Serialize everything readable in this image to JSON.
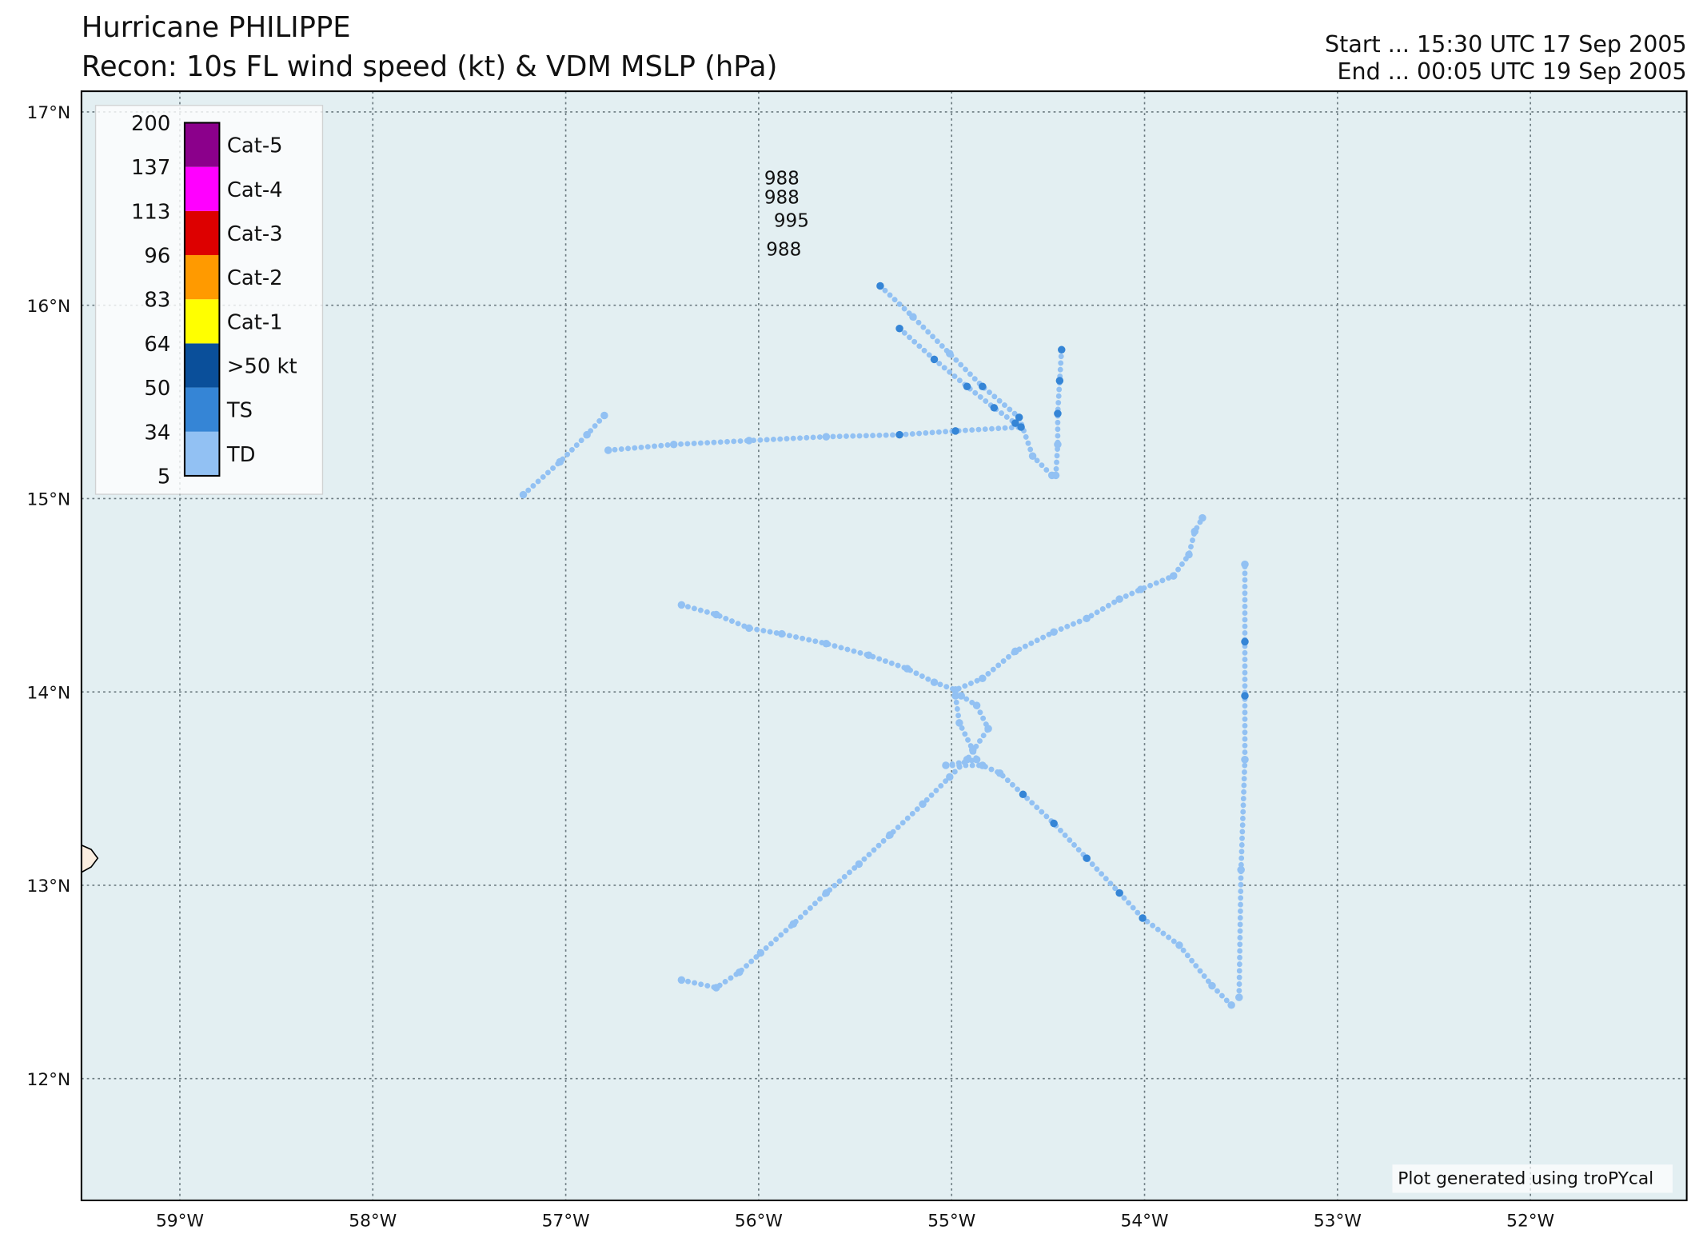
{
  "chart_data": {
    "type": "scatter",
    "title": "Hurricane PHILIPPE",
    "subtitle": "Recon: 10s FL wind speed (kt) & VDM MSLP (hPa)",
    "start": "Start ... 15:30 UTC 17 Sep 2005",
    "end": "End ... 00:05 UTC 19 Sep 2005",
    "credit": "Plot generated using troPYcal",
    "xlim": [
      -59.51,
      -51.19
    ],
    "ylim": [
      11.37,
      17.107
    ],
    "xticks": [
      {
        "value": -59,
        "label": "59°W"
      },
      {
        "value": -58,
        "label": "58°W"
      },
      {
        "value": -57,
        "label": "57°W"
      },
      {
        "value": -56,
        "label": "56°W"
      },
      {
        "value": -55,
        "label": "55°W"
      },
      {
        "value": -54,
        "label": "54°W"
      },
      {
        "value": -53,
        "label": "53°W"
      },
      {
        "value": -52,
        "label": "52°W"
      }
    ],
    "yticks": [
      {
        "value": 12,
        "label": "12°N"
      },
      {
        "value": 13,
        "label": "13°N"
      },
      {
        "value": 14,
        "label": "14°N"
      },
      {
        "value": 15,
        "label": "15°N"
      },
      {
        "value": 16,
        "label": "16°N"
      },
      {
        "value": 17,
        "label": "17°N"
      }
    ],
    "grid": true,
    "colorbar": {
      "levels": [
        5,
        34,
        50,
        64,
        83,
        96,
        113,
        137,
        200
      ],
      "categories": [
        {
          "name": "TD",
          "color": "#92c1f3"
        },
        {
          "name": "TS",
          "color": "#3585d6"
        },
        {
          "name": ">50 kt",
          "color": "#0a4f9a"
        },
        {
          "name": "Cat-1",
          "color": "#ffff00"
        },
        {
          "name": "Cat-2",
          "color": "#ff9a00"
        },
        {
          "name": "Cat-3",
          "color": "#dd0000"
        },
        {
          "name": "Cat-4",
          "color": "#ff00ff"
        },
        {
          "name": "Cat-5",
          "color": "#8b008b"
        }
      ]
    },
    "legs": [
      {
        "lon": [
          -57.22,
          -57.03,
          -56.89,
          -56.8
        ],
        "lat": [
          15.02,
          15.19,
          15.33,
          15.43
        ],
        "wind": [
          25,
          25,
          25,
          25
        ]
      },
      {
        "lon": [
          -56.78,
          -56.44,
          -56.05,
          -55.65,
          -55.27,
          -54.98,
          -54.64
        ],
        "lat": [
          15.25,
          15.28,
          15.3,
          15.32,
          15.33,
          15.35,
          15.37
        ],
        "wind": [
          25,
          25,
          25,
          25,
          40,
          40,
          40
        ]
      },
      {
        "lon": [
          -55.37,
          -55.2,
          -55.01,
          -54.84,
          -54.65,
          -54.58,
          -54.48
        ],
        "lat": [
          16.1,
          15.94,
          15.75,
          15.58,
          15.42,
          15.22,
          15.12
        ],
        "wind": [
          40,
          25,
          25,
          40,
          40,
          25,
          25
        ]
      },
      {
        "lon": [
          -55.27,
          -55.09,
          -54.92,
          -54.78,
          -54.67
        ],
        "lat": [
          15.88,
          15.72,
          15.58,
          15.47,
          15.39
        ],
        "wind": [
          40,
          40,
          40,
          40,
          40
        ]
      },
      {
        "lon": [
          -54.43,
          -54.44,
          -54.45,
          -54.45,
          -54.46
        ],
        "lat": [
          15.77,
          15.61,
          15.44,
          15.28,
          15.12
        ],
        "wind": [
          40,
          40,
          40,
          25,
          25
        ]
      },
      {
        "lon": [
          -56.4,
          -56.22,
          -56.05,
          -55.88,
          -55.65,
          -55.43,
          -55.23,
          -55.09,
          -54.98,
          -54.84,
          -54.67,
          -54.47,
          -54.3,
          -54.13,
          -54.02,
          -53.85,
          -53.77,
          -53.74,
          -53.7
        ],
        "lat": [
          14.45,
          14.4,
          14.33,
          14.3,
          14.25,
          14.19,
          14.12,
          14.05,
          14.01,
          14.07,
          14.21,
          14.31,
          14.38,
          14.48,
          14.53,
          14.6,
          14.71,
          14.83,
          14.9
        ],
        "wind": [
          25,
          25,
          25,
          25,
          25,
          25,
          25,
          25,
          25,
          25,
          25,
          25,
          25,
          25,
          25,
          25,
          25,
          25,
          25
        ]
      },
      {
        "lon": [
          -54.98,
          -54.96,
          -54.89,
          -54.87,
          -55.03,
          -54.84,
          -54.75,
          -54.63,
          -54.47,
          -54.3,
          -54.13,
          -54.01,
          -53.82,
          -53.65,
          -53.55
        ],
        "lat": [
          13.98,
          13.84,
          13.7,
          13.65,
          13.62,
          13.62,
          13.58,
          13.47,
          13.32,
          13.14,
          12.96,
          12.83,
          12.69,
          12.48,
          12.38
        ],
        "wind": [
          25,
          25,
          25,
          25,
          25,
          25,
          25,
          40,
          40,
          40,
          40,
          40,
          25,
          25,
          25
        ]
      },
      {
        "lon": [
          -53.51,
          -53.5,
          -53.48,
          -53.48,
          -53.48,
          -53.48
        ],
        "lat": [
          12.42,
          13.08,
          13.65,
          13.98,
          14.26,
          14.66
        ],
        "wind": [
          25,
          25,
          25,
          40,
          40,
          25
        ]
      },
      {
        "lon": [
          -56.4,
          -56.22,
          -56.1,
          -55.99,
          -55.82,
          -55.65,
          -55.48,
          -55.32,
          -55.15,
          -55.01,
          -54.92,
          -54.81,
          -54.87,
          -54.95
        ],
        "lat": [
          12.51,
          12.47,
          12.55,
          12.65,
          12.8,
          12.96,
          13.11,
          13.26,
          13.42,
          13.56,
          13.65,
          13.81,
          13.93,
          13.98
        ],
        "wind": [
          25,
          25,
          25,
          25,
          25,
          25,
          25,
          25,
          25,
          25,
          25,
          25,
          25,
          25
        ]
      }
    ],
    "vdm": [
      {
        "lon": -55.88,
        "lat": 16.66,
        "mslp": 988
      },
      {
        "lon": -55.88,
        "lat": 16.56,
        "mslp": 988
      },
      {
        "lon": -55.83,
        "lat": 16.44,
        "mslp": 995
      },
      {
        "lon": -55.87,
        "lat": 16.29,
        "mslp": 988
      }
    ]
  }
}
